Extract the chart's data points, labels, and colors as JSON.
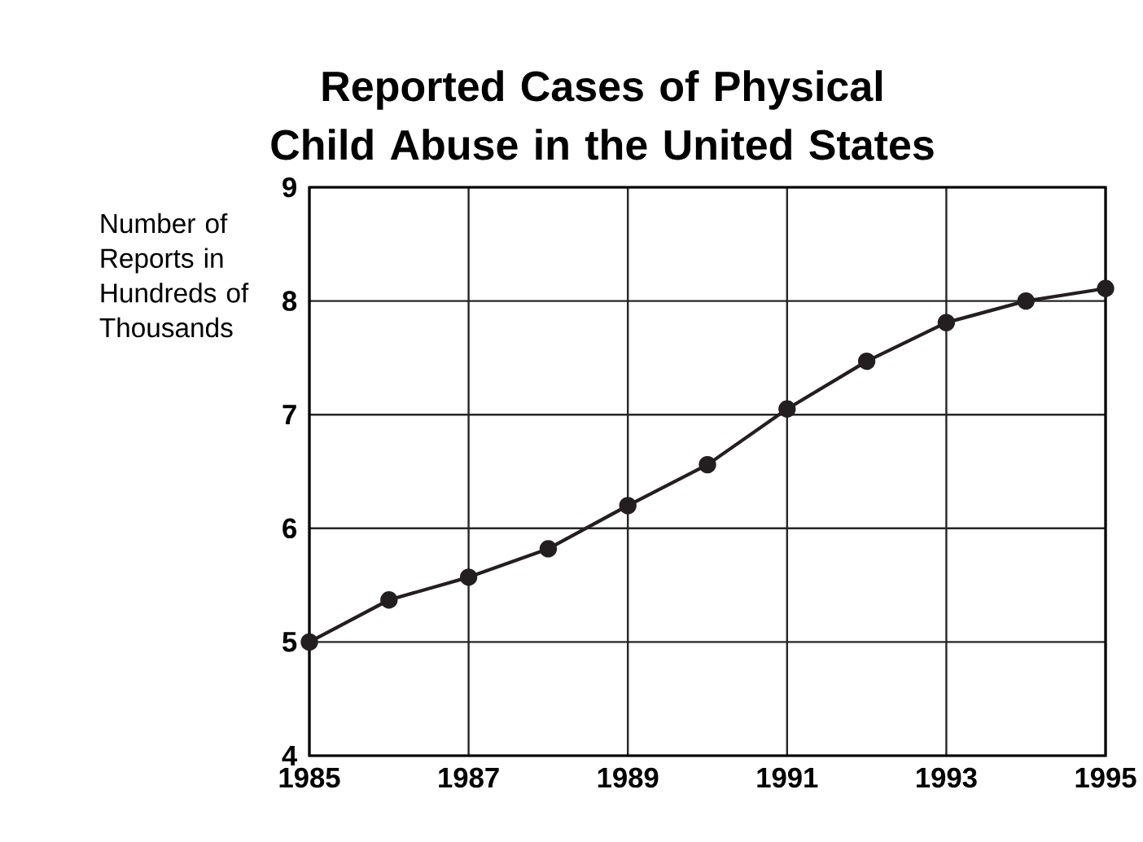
{
  "chart_data": {
    "type": "line",
    "title": "Reported Cases of Physical Child Abuse in the United States",
    "ylabel": "Number of Reports in Hundreds of Thousands",
    "x": [
      1985,
      1986,
      1987,
      1988,
      1989,
      1990,
      1991,
      1992,
      1993,
      1994,
      1995
    ],
    "series": [
      {
        "color": "#231f20",
        "values": [
          5.0,
          5.37,
          5.57,
          5.82,
          6.2,
          6.56,
          7.05,
          7.47,
          7.81,
          8.0,
          8.11
        ]
      }
    ],
    "xlim": [
      1985,
      1995
    ],
    "xticks": [
      1985,
      1987,
      1989,
      1991,
      1993,
      1995
    ],
    "ylim": [
      4,
      9
    ],
    "yticks": [
      4,
      5,
      6,
      7,
      8,
      9
    ],
    "grid": true,
    "marker": "circle",
    "line_style": "solid"
  }
}
